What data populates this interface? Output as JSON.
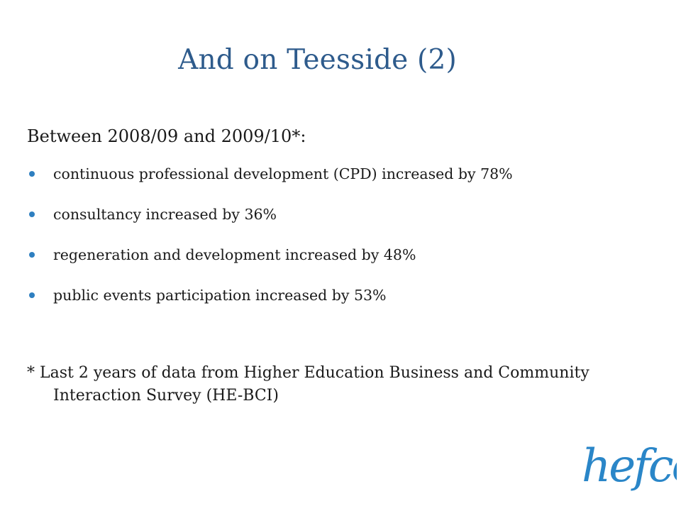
{
  "slide": {
    "title": "And on Teesside (2)",
    "intro": "Between 2008/09 and 2009/10*:",
    "bullets": [
      "continuous professional development (CPD) increased by 78%",
      "consultancy increased by 36%",
      "regeneration and development increased by 48%",
      "public events participation increased by 53%"
    ],
    "footnote": "* Last 2 years of data from Higher Education Business and Community Interaction Survey (HE-BCI)"
  },
  "logo": {
    "text": "hefce",
    "color": "#2a86c8"
  },
  "colors": {
    "title": "#2e5b8c",
    "bullet": "#2e7fc0"
  }
}
